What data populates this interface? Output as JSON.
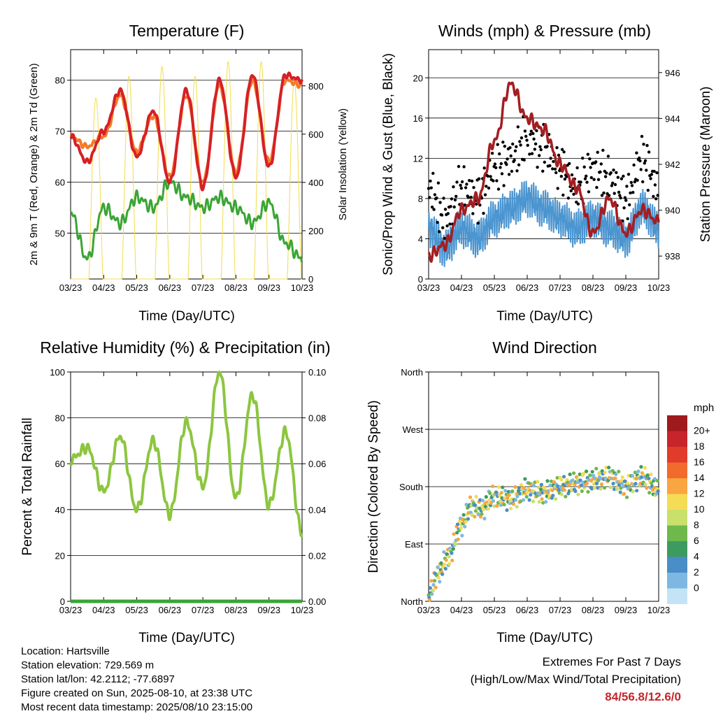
{
  "colors": {
    "temp_2m": "#d62027",
    "temp_9m": "#f47a28",
    "dewpoint": "#3aa535",
    "solar": "#f2dc4a",
    "gust": "#000000",
    "wind": "#4b95d0",
    "pressure": "#a31e22",
    "rh": "#8cc63f",
    "precip": "#3aa535"
  },
  "icons": [],
  "panels": {
    "temp": {
      "title": "Temperature (F)",
      "ylabel_left": "2m & 9m T (Red, Orange) & 2m Td (Green)",
      "ylabel_right": "Solar Insolation (Yellow)",
      "xlabel": "Time (Day/UTC)"
    },
    "wind": {
      "title": "Winds (mph) & Pressure (mb)",
      "ylabel_left": "Sonic/Prop Wind & Gust (Blue, Black)",
      "ylabel_right": "Station Pressure (Maroon)",
      "xlabel": "Time (Day/UTC)"
    },
    "rh": {
      "title": "Relative Humidity (%) & Precipitation (in)",
      "ylabel_left": "Percent & Total Rainfall",
      "xlabel": "Time (Day/UTC)"
    },
    "dir": {
      "title": "Wind Direction",
      "ylabel_left": "Direction (Colored By Speed)",
      "xlabel": "Time (Day/UTC)",
      "legend_title": "mph"
    }
  },
  "info": {
    "location": "Location: Hartsville",
    "elevation": "Station elevation: 729.569 m",
    "latlon": "Station lat/lon: 42.2112; -77.6897",
    "created": "Figure created on Sun, 2025-08-10, at 23:38 UTC",
    "recent": "Most recent data timestamp: 2025/08/10 23:15:00"
  },
  "extremes": {
    "line1": "Extremes For Past 7 Days",
    "line2": "(High/Low/Max Wind/Total Precipitation)",
    "values": "84/56.8/12.6/0"
  },
  "chart_data": [
    {
      "type": "line",
      "title": "Temperature (F)",
      "xlabel": "Time (Day/UTC)",
      "ylabel": "2m & 9m T (Red, Orange) & 2m Td (Green)",
      "ylabel_right": "Solar Insolation (Yellow)",
      "x_ticks": [
        "03/23",
        "04/23",
        "05/23",
        "06/23",
        "07/23",
        "08/23",
        "09/23",
        "10/23"
      ],
      "x": [
        0,
        0.5,
        1,
        1.5,
        2,
        2.5,
        3,
        3.5,
        4,
        4.5,
        5,
        5.5,
        6,
        6.5,
        7
      ],
      "y_ticks_left": [
        50,
        60,
        70,
        80
      ],
      "ylim_left": [
        41,
        86
      ],
      "y_ticks_right": [
        0,
        200,
        400,
        600,
        800
      ],
      "ylim_right": [
        0,
        950
      ],
      "series": [
        {
          "name": "2m T",
          "color": "#d62027",
          "values": [
            69,
            64,
            70,
            78,
            65,
            74,
            60,
            78,
            59,
            80,
            61,
            81,
            63,
            81,
            80
          ]
        },
        {
          "name": "9m T",
          "color": "#f47a28",
          "values": [
            69,
            67,
            69,
            77,
            66,
            73,
            61,
            77,
            60,
            79,
            62,
            80,
            64,
            80,
            79
          ]
        },
        {
          "name": "2m Td",
          "color": "#3aa535",
          "values": [
            54,
            45,
            55,
            52,
            57,
            55,
            60,
            57,
            55,
            57,
            55,
            52,
            56,
            48,
            45
          ]
        }
      ],
      "solar_peaks": [
        750,
        840,
        880,
        840,
        900,
        900,
        820,
        800
      ]
    },
    {
      "type": "line",
      "title": "Winds (mph) & Pressure (mb)",
      "xlabel": "Time (Day/UTC)",
      "ylabel": "Sonic/Prop Wind & Gust (Blue, Black)",
      "ylabel_right": "Station Pressure (Maroon)",
      "x_ticks": [
        "03/23",
        "04/23",
        "05/23",
        "06/23",
        "07/23",
        "08/23",
        "09/23",
        "10/23"
      ],
      "x": [
        0,
        0.5,
        1,
        1.5,
        2,
        2.5,
        3,
        3.5,
        4,
        4.5,
        5,
        5.5,
        6,
        6.5,
        7
      ],
      "y_ticks_left": [
        0,
        4,
        8,
        12,
        16,
        20
      ],
      "ylim_left": [
        0,
        22.8
      ],
      "y_ticks_right": [
        938,
        940,
        942,
        944,
        946
      ],
      "ylim_right": [
        937,
        947
      ],
      "series": [
        {
          "name": "Wind",
          "color": "#4b95d0",
          "values": [
            5,
            3,
            5,
            4,
            6,
            7,
            8,
            7,
            6,
            5,
            6,
            5,
            4,
            7,
            5
          ]
        },
        {
          "name": "Gust",
          "color": "#000000",
          "values": [
            9,
            6,
            9,
            8,
            11,
            12,
            14,
            13,
            11,
            9,
            11,
            10,
            8,
            12,
            9
          ]
        },
        {
          "name": "Pressure",
          "color": "#a31e22",
          "values": [
            938,
            938.5,
            940,
            940.5,
            943,
            945.5,
            944,
            943.5,
            942,
            941,
            939,
            940.5,
            939,
            940,
            939.5
          ]
        }
      ]
    },
    {
      "type": "line",
      "title": "Relative Humidity (%) & Precipitation (in)",
      "xlabel": "Time (Day/UTC)",
      "ylabel": "Percent & Total Rainfall",
      "x_ticks": [
        "03/23",
        "04/23",
        "05/23",
        "06/23",
        "07/23",
        "08/23",
        "09/23",
        "10/23"
      ],
      "x": [
        0,
        0.5,
        1,
        1.5,
        2,
        2.5,
        3,
        3.5,
        4,
        4.5,
        5,
        5.5,
        6,
        6.5,
        7
      ],
      "y_ticks_left": [
        0,
        20,
        40,
        60,
        80,
        100
      ],
      "ylim_left": [
        0,
        100
      ],
      "y_ticks_right": [
        "0.00",
        "0.02",
        "0.04",
        "0.06",
        "0.08",
        "0.10"
      ],
      "ylim_right": [
        0,
        0.1
      ],
      "series": [
        {
          "name": "RH",
          "color": "#8cc63f",
          "values": [
            62,
            67,
            48,
            72,
            40,
            70,
            38,
            78,
            50,
            100,
            45,
            90,
            42,
            74,
            30
          ]
        },
        {
          "name": "Precipitation",
          "color": "#3aa535",
          "values": [
            0,
            0,
            0,
            0,
            0,
            0,
            0,
            0,
            0,
            0,
            0,
            0,
            0,
            0,
            0
          ]
        }
      ]
    },
    {
      "type": "scatter",
      "title": "Wind Direction",
      "xlabel": "Time (Day/UTC)",
      "ylabel": "Direction (Colored By Speed)",
      "x_ticks": [
        "03/23",
        "04/23",
        "05/23",
        "06/23",
        "07/23",
        "08/23",
        "09/23",
        "10/23"
      ],
      "y_ticks": [
        "North",
        "East",
        "South",
        "West",
        "North"
      ],
      "ylim": [
        0,
        360
      ],
      "legend": {
        "title": "mph",
        "labels": [
          "20+",
          "18",
          "16",
          "14",
          "12",
          "10",
          "8",
          "6",
          "4",
          "2",
          "0"
        ],
        "colors": [
          "#9e1a1d",
          "#c8242b",
          "#e03b2b",
          "#f26a2c",
          "#f9a540",
          "#f4dc55",
          "#c9e06b",
          "#6db94c",
          "#3e9b60",
          "#4a8dc8",
          "#7eb8e2",
          "#c4e3f6"
        ]
      },
      "x": [
        0,
        0.3,
        0.6,
        1,
        1.3,
        1.6,
        2,
        2.5,
        3,
        3.5,
        4,
        4.5,
        5,
        5.5,
        6,
        6.5,
        7
      ],
      "values": [
        10,
        45,
        70,
        120,
        150,
        145,
        165,
        160,
        175,
        170,
        180,
        185,
        190,
        195,
        180,
        195,
        175
      ]
    }
  ]
}
